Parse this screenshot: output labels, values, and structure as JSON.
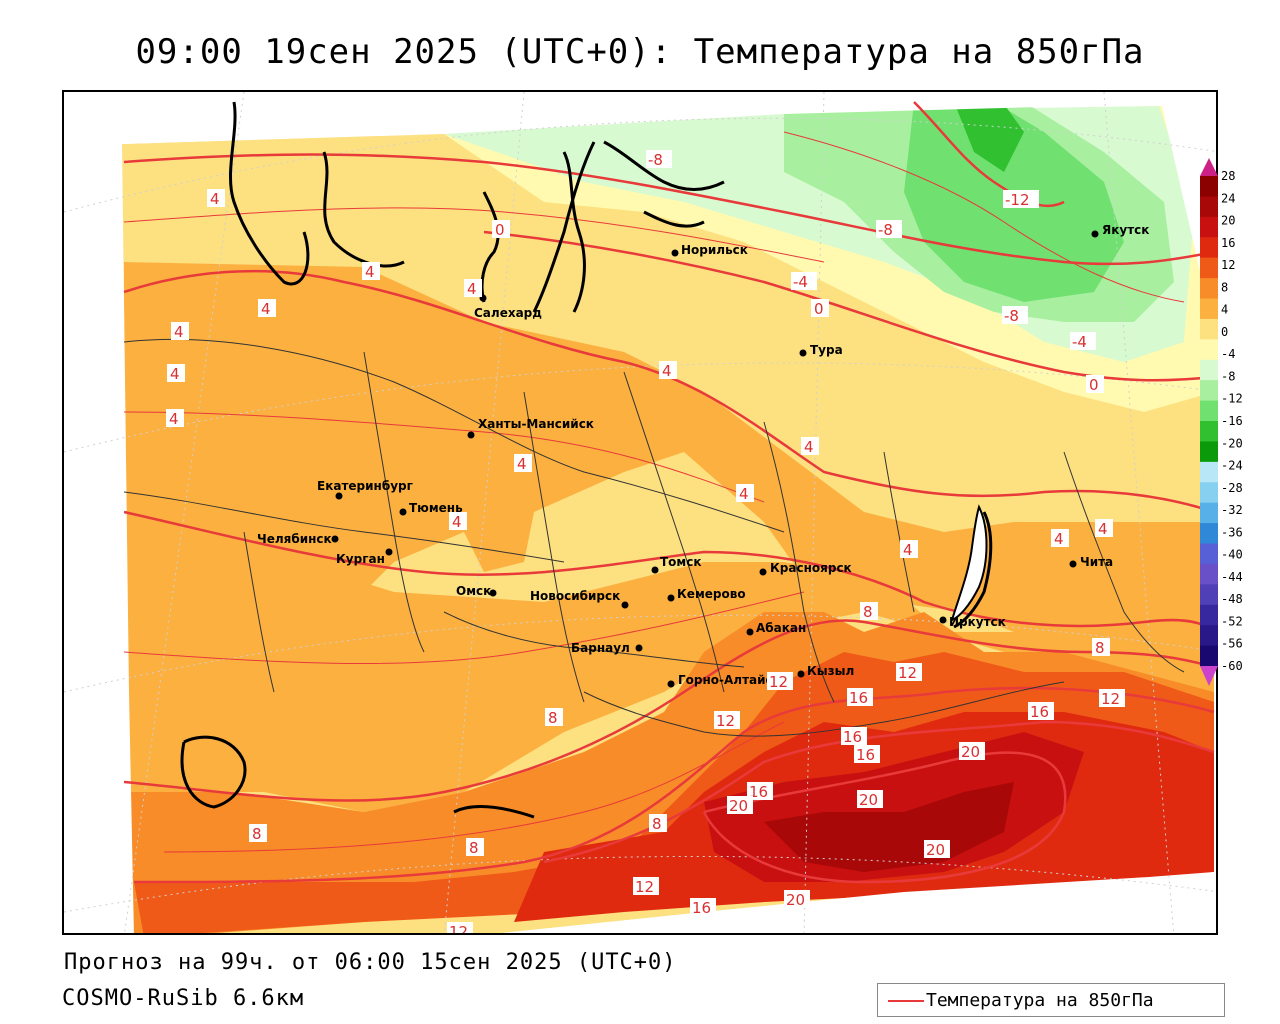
{
  "title": "09:00 19сен 2025 (UTC+0): Температура на 850гПа",
  "forecast_text": "Прогноз на 99ч. от 06:00 15сен 2025 (UTC+0)",
  "model_text": "COSMO-RuSib 6.6км",
  "legend": {
    "label": "Температура на 850гПа",
    "line_color": "#e83a3a"
  },
  "cities": [
    {
      "name": "Якутск"
    },
    {
      "name": "Норильск"
    },
    {
      "name": "Салехард"
    },
    {
      "name": "Тура"
    },
    {
      "name": "Ханты-Мансийск"
    },
    {
      "name": "Екатеринбург"
    },
    {
      "name": "Тюмень"
    },
    {
      "name": "Челябинск"
    },
    {
      "name": "Курган"
    },
    {
      "name": "Омск"
    },
    {
      "name": "Новосибирск"
    },
    {
      "name": "Томск"
    },
    {
      "name": "Кемерово"
    },
    {
      "name": "Красноярск"
    },
    {
      "name": "Барнаул"
    },
    {
      "name": "Абакан"
    },
    {
      "name": "Горно-Алтайск"
    },
    {
      "name": "Кызыл"
    },
    {
      "name": "Иркутск"
    },
    {
      "name": "Чита"
    }
  ],
  "isoline_labels": [
    "-8",
    "-12",
    "-8",
    "-4",
    "0",
    "-8",
    "-4",
    "0",
    "0",
    "4",
    "4",
    "4",
    "4",
    "4",
    "4",
    "4",
    "4",
    "4",
    "4",
    "4",
    "4",
    "4",
    "4",
    "4",
    "8",
    "8",
    "8",
    "8",
    "8",
    "8",
    "12",
    "12",
    "12",
    "16",
    "16",
    "16",
    "16",
    "16",
    "20",
    "20",
    "20",
    "20",
    "20",
    "12",
    "12",
    "16",
    "12"
  ],
  "colorbar": {
    "ticks": [
      "28",
      "24",
      "20",
      "16",
      "12",
      "8",
      "4",
      "0",
      "-4",
      "-8",
      "-12",
      "-16",
      "-20",
      "-24",
      "-28",
      "-32",
      "-36",
      "-40",
      "-44",
      "-48",
      "-52",
      "-56",
      "-60"
    ],
    "colors": [
      "#8b0000",
      "#a80808",
      "#c81010",
      "#e02a10",
      "#f05a18",
      "#f88c28",
      "#fbb040",
      "#fde080",
      "#fffab0",
      "#d8fad0",
      "#a8f0a0",
      "#70e070",
      "#30c030",
      "#0a9a0a",
      "#b8e8f8",
      "#88d0f0",
      "#58b0e8",
      "#3088d8",
      "#5860d8",
      "#6a50c8",
      "#5040b8",
      "#3828a0",
      "#281888",
      "#180870"
    ]
  }
}
